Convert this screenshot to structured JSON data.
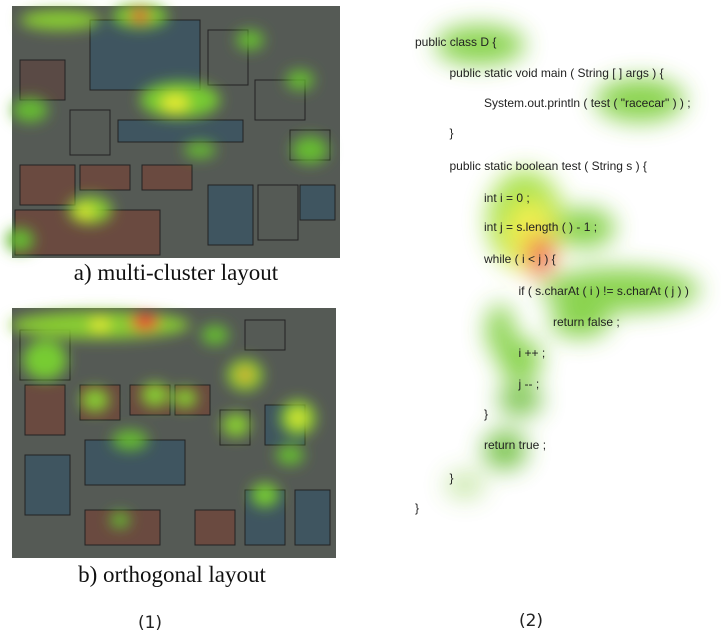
{
  "panels": [
    {
      "caption": "a) multi-cluster layout"
    },
    {
      "caption": "b) orthogonal layout"
    }
  ],
  "labels": [
    "(1)",
    "(2)"
  ],
  "code": {
    "lines": [
      "public class D {",
      "public static void main ( String [ ] args ) {",
      "System.out.println ( test ( \"racecar\" ) ) ;",
      "}",
      "public static boolean test ( String s ) {",
      "int i = 0 ;",
      "int j = s.length ( ) - 1 ;",
      "while ( i < j ) {",
      "if ( s.charAt ( i ) != s.charAt ( j ) )",
      "return false ;",
      "i ++ ;",
      "j -- ;",
      "}",
      "return true ;",
      "}",
      "}"
    ]
  }
}
